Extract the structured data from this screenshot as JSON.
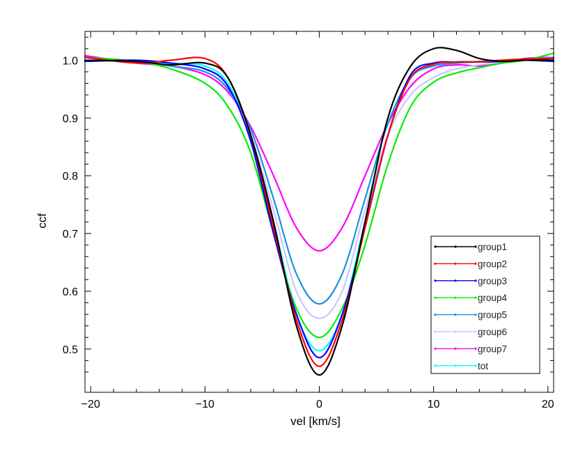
{
  "chart_data": {
    "type": "line",
    "title": "",
    "xlabel": "vel [km/s]",
    "ylabel": "ccf",
    "xlim": [
      -20.5,
      20.5
    ],
    "ylim": [
      0.425,
      1.05
    ],
    "xticks": [
      -20,
      -10,
      0,
      10,
      20
    ],
    "xtick_labels": [
      "−20",
      "−10",
      "0",
      "10",
      "20"
    ],
    "yticks": [
      0.5,
      0.6,
      0.7,
      0.8,
      0.9,
      1.0
    ],
    "ytick_labels": [
      "0.5",
      "0.6",
      "0.7",
      "0.8",
      "0.9",
      "1.0"
    ],
    "legend_position": "bottom-right",
    "series": [
      {
        "name": "group1",
        "color": "#000000",
        "x": [
          -20.5,
          -16,
          -13,
          -10,
          -8,
          -6,
          -4,
          -2,
          0,
          2,
          4,
          6,
          8,
          10,
          12,
          14,
          16,
          18,
          20.5
        ],
        "y": [
          1.0,
          0.998,
          0.992,
          0.995,
          0.97,
          0.87,
          0.72,
          0.54,
          0.455,
          0.54,
          0.72,
          0.9,
          0.99,
          1.02,
          1.017,
          1.003,
          0.998,
          1.0,
          1.0
        ]
      },
      {
        "name": "group2",
        "color": "#ff0000",
        "x": [
          -20.5,
          -16,
          -13,
          -10,
          -8,
          -6,
          -4,
          -2,
          0,
          2,
          4,
          6,
          8,
          10,
          12,
          14,
          16,
          18,
          20.5
        ],
        "y": [
          1.005,
          0.995,
          1.0,
          1.003,
          0.97,
          0.87,
          0.71,
          0.55,
          0.47,
          0.55,
          0.71,
          0.87,
          0.97,
          0.993,
          0.997,
          0.997,
          1.0,
          1.002,
          1.003
        ]
      },
      {
        "name": "group3",
        "color": "#0000ff",
        "x": [
          -20.5,
          -16,
          -13,
          -10,
          -8,
          -6,
          -4,
          -2,
          0,
          2,
          4,
          6,
          8,
          10,
          12,
          14,
          16,
          18,
          20.5
        ],
        "y": [
          0.998,
          1.0,
          0.995,
          0.985,
          0.955,
          0.86,
          0.7,
          0.56,
          0.485,
          0.56,
          0.71,
          0.87,
          0.975,
          0.995,
          0.997,
          0.997,
          0.998,
          1.0,
          0.998
        ]
      },
      {
        "name": "group4",
        "color": "#00ee00",
        "x": [
          -20.5,
          -16,
          -13,
          -10,
          -8,
          -6,
          -4,
          -2,
          0,
          2,
          4,
          6,
          8,
          10,
          12,
          14,
          16,
          18,
          20.5
        ],
        "y": [
          1.005,
          0.998,
          0.985,
          0.96,
          0.92,
          0.84,
          0.7,
          0.57,
          0.52,
          0.57,
          0.68,
          0.82,
          0.92,
          0.962,
          0.978,
          0.987,
          0.995,
          1.0,
          1.012
        ]
      },
      {
        "name": "group5",
        "color": "#1e90e0",
        "x": [
          -20.5,
          -16,
          -13,
          -10,
          -8,
          -6,
          -4,
          -2,
          0,
          2,
          4,
          6,
          8,
          10,
          12,
          14,
          16,
          18,
          20.5
        ],
        "y": [
          1.0,
          0.998,
          0.99,
          0.98,
          0.95,
          0.88,
          0.76,
          0.63,
          0.578,
          0.63,
          0.76,
          0.89,
          0.97,
          0.99,
          0.995,
          0.998,
          1.0,
          1.0,
          1.005
        ]
      },
      {
        "name": "group6",
        "color": "#c8c8ff",
        "x": [
          -20.5,
          -16,
          -13,
          -10,
          -8,
          -6,
          -4,
          -2,
          0,
          2,
          4,
          6,
          8,
          10,
          12,
          14,
          16,
          18,
          20.5
        ],
        "y": [
          1.0,
          0.998,
          0.99,
          0.98,
          0.95,
          0.87,
          0.74,
          0.6,
          0.553,
          0.6,
          0.74,
          0.87,
          0.94,
          0.97,
          0.985,
          0.992,
          0.998,
          1.0,
          1.005
        ]
      },
      {
        "name": "group7",
        "color": "#ff00ff",
        "x": [
          -20.5,
          -16,
          -13,
          -10,
          -8,
          -6,
          -4,
          -2,
          0,
          2,
          4,
          6,
          8,
          10,
          12,
          14,
          16,
          18,
          20.5
        ],
        "y": [
          1.008,
          0.995,
          0.99,
          0.975,
          0.945,
          0.885,
          0.8,
          0.71,
          0.67,
          0.71,
          0.8,
          0.89,
          0.955,
          0.985,
          0.992,
          0.99,
          0.995,
          1.003,
          1.005
        ]
      },
      {
        "name": "tot",
        "color": "#00ffff",
        "x": [
          -20.5,
          -16,
          -13,
          -10,
          -8,
          -6,
          -4,
          -2,
          0,
          2,
          4,
          6,
          8,
          10,
          12,
          14,
          16,
          18,
          20.5
        ],
        "y": [
          1.0,
          0.998,
          0.995,
          0.99,
          0.96,
          0.87,
          0.72,
          0.56,
          0.497,
          0.56,
          0.72,
          0.87,
          0.97,
          0.99,
          0.995,
          0.997,
          1.0,
          1.0,
          1.0
        ]
      }
    ]
  }
}
